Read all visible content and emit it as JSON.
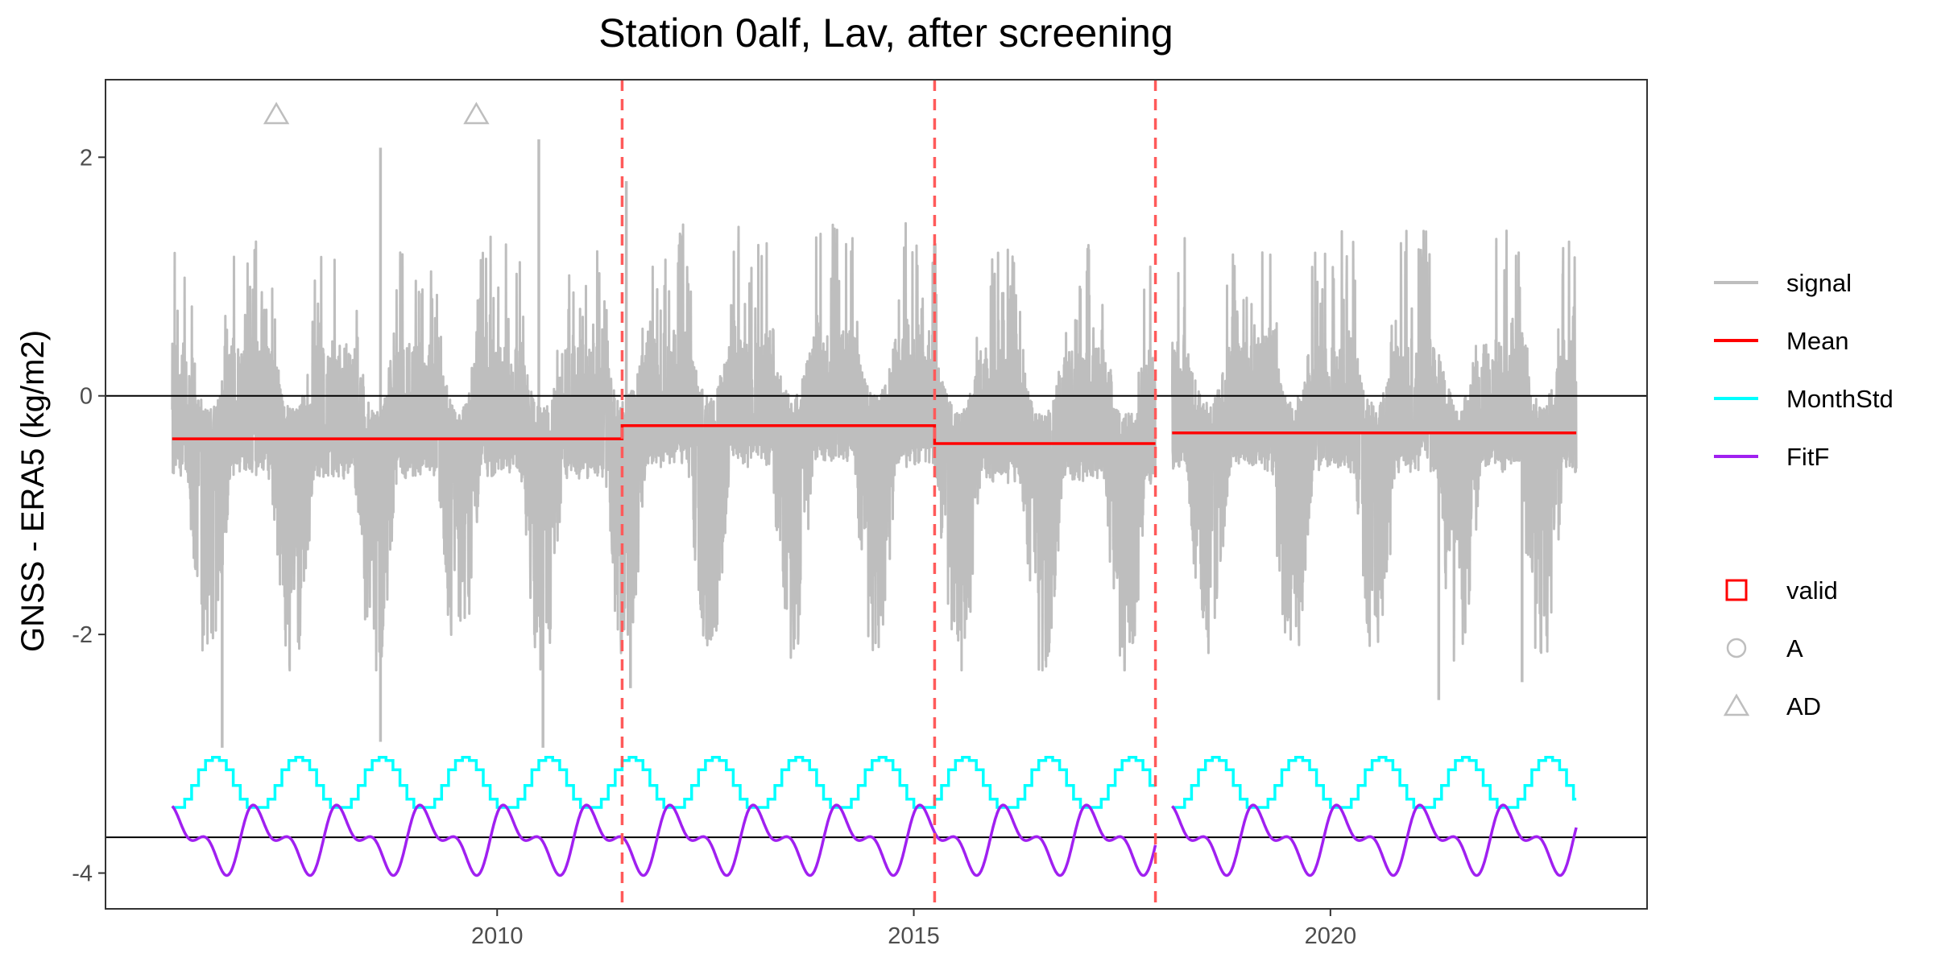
{
  "chart_data": {
    "type": "line",
    "title": "Station 0alf, Lav, after screening",
    "xlabel": "",
    "ylabel": "GNSS - ERA5 (kg/m2)",
    "xlim": [
      2005.3,
      2023.8
    ],
    "ylim": [
      -4.3,
      2.65
    ],
    "x_ticks": [
      2010,
      2015,
      2020
    ],
    "x_tick_labels": [
      "2010",
      "2015",
      "2020"
    ],
    "y_ticks": [
      2,
      0,
      -2,
      -4
    ],
    "y_tick_labels": [
      "2",
      "0",
      "-2",
      "-4"
    ],
    "grid": false,
    "legend_position": "right",
    "colors": {
      "signal": "#bebebe",
      "mean": "#ff0000",
      "monthstd": "#00ffff",
      "fitf": "#a020f0",
      "breakpoint": "#ff5a5a",
      "reference": "#000000",
      "ad_marker": "#bebebe"
    },
    "signal": {
      "name": "signal",
      "x_start": 2006.1,
      "x_end": 2022.95,
      "gap": [
        2017.9,
        2018.1
      ],
      "summer_low_min": -2.3,
      "winter_spike_max": 1.2,
      "notable_extremes": [
        {
          "x": 2006.7,
          "y": -2.95
        },
        {
          "x": 2008.6,
          "y": 2.08
        },
        {
          "x": 2008.6,
          "y": -2.9
        },
        {
          "x": 2010.5,
          "y": 2.15
        },
        {
          "x": 2010.55,
          "y": -2.95
        },
        {
          "x": 2011.55,
          "y": 1.8
        },
        {
          "x": 2011.6,
          "y": -2.45
        },
        {
          "x": 2021.3,
          "y": -2.55
        },
        {
          "x": 2022.3,
          "y": -2.4
        }
      ]
    },
    "mean_segments": {
      "name": "Mean",
      "segments": [
        {
          "x0": 2006.1,
          "x1": 2011.5,
          "y": -0.36
        },
        {
          "x0": 2011.5,
          "x1": 2015.25,
          "y": -0.25
        },
        {
          "x0": 2015.25,
          "x1": 2017.9,
          "y": -0.4
        },
        {
          "x0": 2018.1,
          "x1": 2022.95,
          "y": -0.31
        }
      ]
    },
    "monthstd": {
      "name": "MonthStd",
      "baseline": -3.38,
      "winter_value": -3.45,
      "summer_peak": -3.03,
      "peak_month": 7
    },
    "fitf": {
      "name": "FitF",
      "offset": -3.72,
      "period_years": 1,
      "harmonics": [
        {
          "k": 1,
          "cos": 0.1,
          "sin": 0.18
        },
        {
          "k": 2,
          "cos": 0.12,
          "sin": 0.06
        }
      ]
    },
    "breakpoints": [
      2011.5,
      2015.25,
      2017.9
    ],
    "hlines": [
      0,
      -3.7
    ],
    "ad_markers": [
      {
        "x": 2007.35,
        "y": 2.36
      },
      {
        "x": 2009.75,
        "y": 2.36
      }
    ],
    "legend": {
      "lines": [
        {
          "label": "signal",
          "color": "#bebebe"
        },
        {
          "label": "Mean",
          "color": "#ff0000"
        },
        {
          "label": "MonthStd",
          "color": "#00ffff"
        },
        {
          "label": "FitF",
          "color": "#a020f0"
        }
      ],
      "markers": [
        {
          "label": "valid",
          "shape": "square",
          "color": "#ff0000"
        },
        {
          "label": "A",
          "shape": "circle",
          "color": "#bebebe"
        },
        {
          "label": "AD",
          "shape": "triangle",
          "color": "#bebebe"
        }
      ]
    }
  }
}
